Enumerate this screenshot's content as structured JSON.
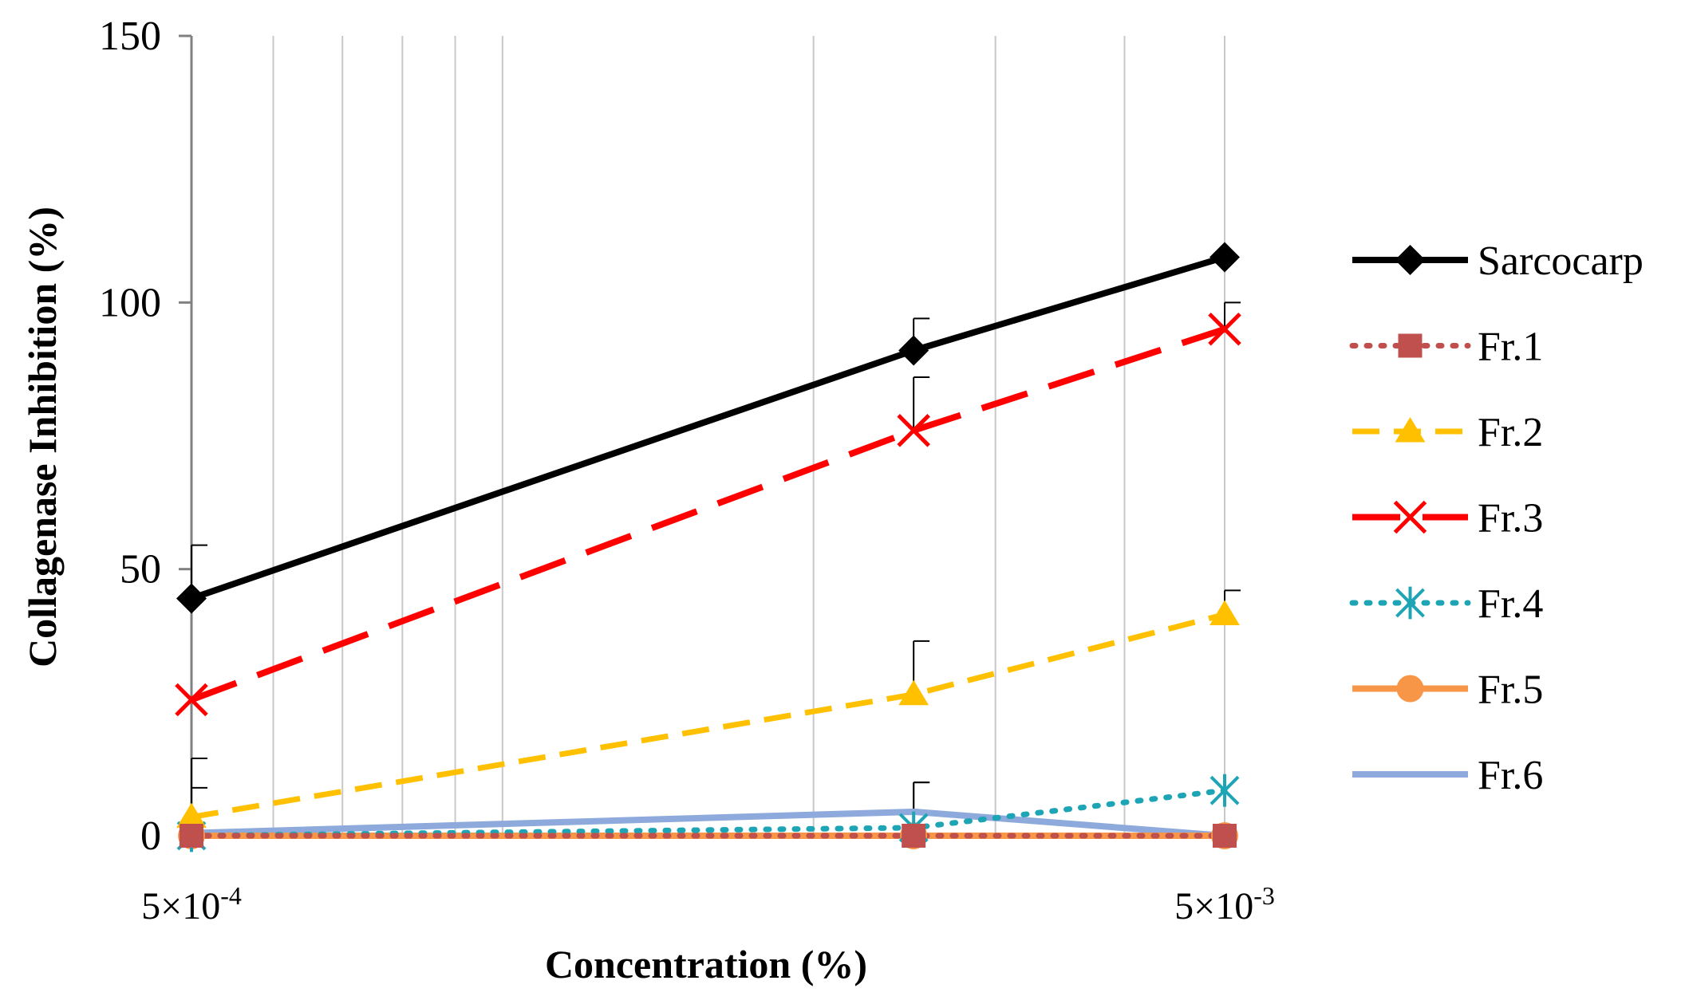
{
  "chart_data": {
    "type": "line",
    "xscale": "log",
    "x": [
      0.0005,
      0.0025,
      0.005
    ],
    "x_tick_labels": [
      {
        "value": 0.0005,
        "mantissa": "5",
        "times": "×",
        "base": "10",
        "exponent": "-4"
      },
      {
        "value": 0.005,
        "mantissa": "5",
        "times": "×",
        "base": "10",
        "exponent": "-3"
      }
    ],
    "xlabel": "Concentration (%)",
    "ylabel": "Collagenase Inhibition (%)",
    "ylim": [
      0,
      150
    ],
    "yticks": [
      "0",
      "50",
      "100",
      "150"
    ],
    "grid": "vertical",
    "legend_position": "right",
    "series": [
      {
        "name": "Sarcocarp",
        "values": [
          44.5,
          91,
          108.5
        ],
        "errors": [
          10,
          6,
          0
        ],
        "color": "#000000",
        "dash": "solid",
        "marker": "diamond"
      },
      {
        "name": "Fr.1",
        "values": [
          0,
          0,
          0
        ],
        "errors": [
          0,
          0,
          0
        ],
        "color": "#C0504D",
        "dash": "dot",
        "marker": "square"
      },
      {
        "name": "Fr.2",
        "values": [
          3.5,
          26.5,
          41.5
        ],
        "errors": [
          11,
          10,
          4.5
        ],
        "color": "#FFC000",
        "dash": "dash",
        "marker": "triangle"
      },
      {
        "name": "Fr.3",
        "values": [
          25.5,
          76,
          95
        ],
        "errors": [
          0,
          10,
          5
        ],
        "color": "#FF0000",
        "dash": "longdash",
        "marker": "x"
      },
      {
        "name": "Fr.4",
        "values": [
          0,
          1.5,
          8.5
        ],
        "errors": [
          0,
          8.5,
          0
        ],
        "color": "#1EA5B5",
        "dash": "dot",
        "marker": "asterisk"
      },
      {
        "name": "Fr.5",
        "values": [
          0,
          0,
          0
        ],
        "errors": [
          0,
          0,
          0
        ],
        "color": "#F79646",
        "dash": "solid",
        "marker": "circle"
      },
      {
        "name": "Fr.6",
        "values": [
          0.5,
          4.5,
          0
        ],
        "errors": [
          8.5,
          5.5,
          0
        ],
        "color": "#8EA9DB",
        "dash": "solid",
        "marker": "none"
      }
    ]
  }
}
